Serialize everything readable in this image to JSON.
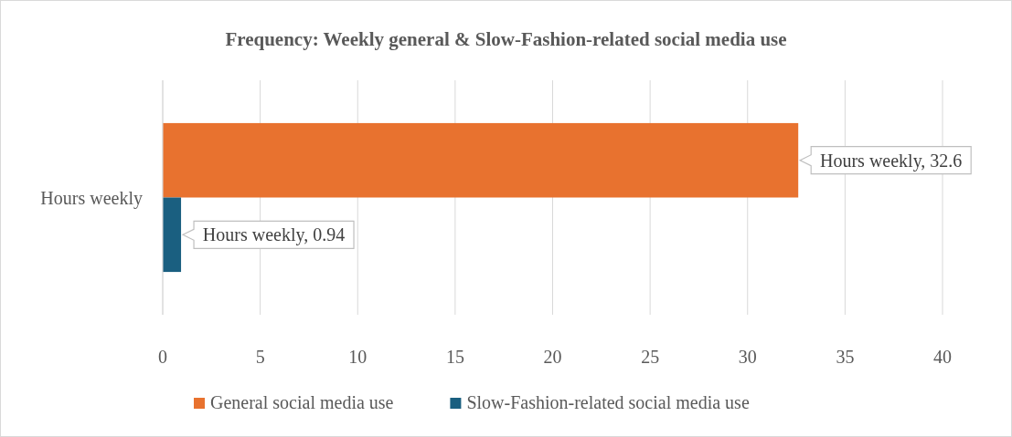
{
  "chart_data": {
    "type": "bar",
    "orientation": "horizontal",
    "title": "Frequency: Weekly general & Slow-Fashion-related social media use",
    "categories": [
      "Hours weekly"
    ],
    "series": [
      {
        "name": "General social media use",
        "color": "#e8722f",
        "values": [
          32.6
        ],
        "value_labels": [
          "Hours weekly, 32.6"
        ]
      },
      {
        "name": "Slow-Fashion-related social media use",
        "color": "#1a5f80",
        "values": [
          0.94
        ],
        "value_labels": [
          "Hours weekly, 0.94"
        ]
      }
    ],
    "xlim": [
      0,
      40
    ],
    "xticks": [
      0,
      5,
      10,
      15,
      20,
      25,
      30,
      35,
      40
    ],
    "grid": "x",
    "legend": "bottom"
  }
}
